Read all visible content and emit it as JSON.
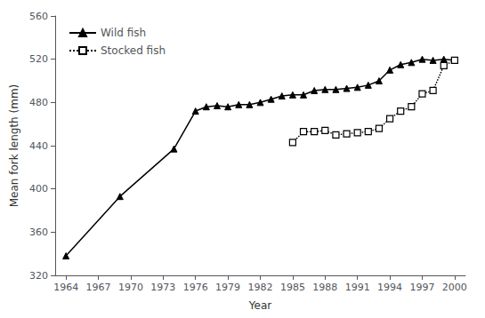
{
  "chart_data": {
    "type": "line",
    "xlabel": "Year",
    "ylabel": "Mean fork length (mm)",
    "series": [
      {
        "name": "Wild fish",
        "color": "black",
        "marker": "triangle",
        "line_style": "solid",
        "x": [
          1964,
          1969,
          1974,
          1976,
          1977,
          1978,
          1979,
          1980,
          1981,
          1982,
          1983,
          1984,
          1985,
          1986,
          1987,
          1988,
          1989,
          1990,
          1991,
          1992,
          1993,
          1994,
          1995,
          1996,
          1997,
          1998,
          1999,
          2000
        ],
        "values": [
          338,
          393,
          437,
          472,
          476,
          477,
          476,
          478,
          478,
          480,
          483,
          486,
          487,
          487,
          491,
          492,
          492,
          493,
          494,
          496,
          500,
          510,
          515,
          517,
          520,
          519,
          520,
          519
        ]
      },
      {
        "name": "Stocked fish",
        "color": "black",
        "marker": "open_square",
        "line_style": "dotted",
        "x": [
          1985,
          1986,
          1987,
          1988,
          1989,
          1990,
          1991,
          1992,
          1993,
          1994,
          1995,
          1996,
          1997,
          1998,
          1999,
          2000
        ],
        "values": [
          443,
          453,
          453,
          454,
          450,
          451,
          452,
          453,
          456,
          465,
          472,
          476,
          488,
          491,
          514,
          519
        ]
      }
    ],
    "xlim": [
      1963,
      2001
    ],
    "ylim": [
      320,
      560
    ],
    "xticks": [
      1964,
      1967,
      1970,
      1973,
      1976,
      1979,
      1982,
      1985,
      1988,
      1991,
      1994,
      1997,
      2000
    ],
    "yticks": [
      320,
      360,
      400,
      440,
      480,
      520,
      560
    ],
    "grid": false,
    "legend": "upper left"
  }
}
